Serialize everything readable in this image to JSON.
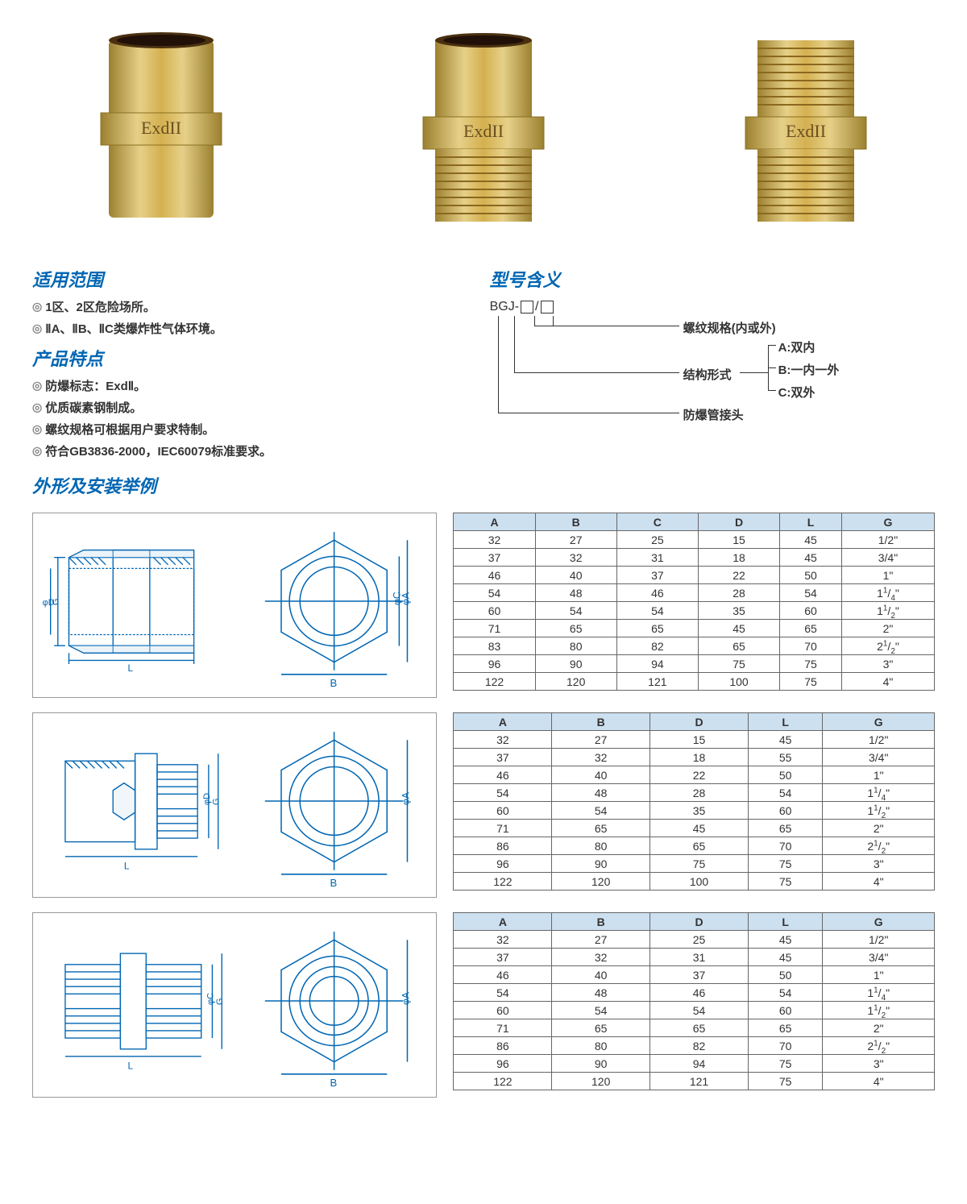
{
  "photos": {
    "label_text": "ExdII"
  },
  "scope": {
    "title": "适用范围",
    "items": [
      "1区、2区危险场所。",
      "ⅡA、ⅡB、ⅡC类爆炸性气体环境。"
    ]
  },
  "features": {
    "title": "产品特点",
    "items": [
      "防爆标志：ExdⅡ。",
      "优质碳素钢制成。",
      "螺纹规格可根据用户要求特制。",
      "符合GB3836-2000，IEC60079标准要求。"
    ]
  },
  "model": {
    "title": "型号含义",
    "code_prefix": "BGJ-",
    "lines": [
      {
        "label": "螺纹规格(内或外)"
      },
      {
        "label": "结构形式",
        "subs": [
          "A:双内",
          "B:一内一外",
          "C:双外"
        ]
      },
      {
        "label": "防爆管接头"
      }
    ]
  },
  "dims_title": "外形及安装举例",
  "table1": {
    "columns": [
      "A",
      "B",
      "C",
      "D",
      "L",
      "G"
    ],
    "rows": [
      [
        "32",
        "27",
        "25",
        "15",
        "45",
        "1/2\""
      ],
      [
        "37",
        "32",
        "31",
        "18",
        "45",
        "3/4\""
      ],
      [
        "46",
        "40",
        "37",
        "22",
        "50",
        "1\""
      ],
      [
        "54",
        "48",
        "46",
        "28",
        "54",
        "1¹/₄\""
      ],
      [
        "60",
        "54",
        "54",
        "35",
        "60",
        "1¹/₂\""
      ],
      [
        "71",
        "65",
        "65",
        "45",
        "65",
        "2\""
      ],
      [
        "83",
        "80",
        "82",
        "65",
        "70",
        "2¹/₂\""
      ],
      [
        "96",
        "90",
        "94",
        "75",
        "75",
        "3\""
      ],
      [
        "122",
        "120",
        "121",
        "100",
        "75",
        "4\""
      ]
    ]
  },
  "table2": {
    "columns": [
      "A",
      "B",
      "D",
      "L",
      "G"
    ],
    "rows": [
      [
        "32",
        "27",
        "15",
        "45",
        "1/2\""
      ],
      [
        "37",
        "32",
        "18",
        "55",
        "3/4\""
      ],
      [
        "46",
        "40",
        "22",
        "50",
        "1\""
      ],
      [
        "54",
        "48",
        "28",
        "54",
        "1¹/₄\""
      ],
      [
        "60",
        "54",
        "35",
        "60",
        "1¹/₂\""
      ],
      [
        "71",
        "65",
        "45",
        "65",
        "2\""
      ],
      [
        "86",
        "80",
        "65",
        "70",
        "2¹/₂\""
      ],
      [
        "96",
        "90",
        "75",
        "75",
        "3\""
      ],
      [
        "122",
        "120",
        "100",
        "75",
        "4\""
      ]
    ]
  },
  "table3": {
    "columns": [
      "A",
      "B",
      "D",
      "L",
      "G"
    ],
    "rows": [
      [
        "32",
        "27",
        "25",
        "45",
        "1/2\""
      ],
      [
        "37",
        "32",
        "31",
        "45",
        "3/4\""
      ],
      [
        "46",
        "40",
        "37",
        "50",
        "1\""
      ],
      [
        "54",
        "48",
        "46",
        "54",
        "1¹/₄\""
      ],
      [
        "60",
        "54",
        "54",
        "60",
        "1¹/₂\""
      ],
      [
        "71",
        "65",
        "65",
        "65",
        "2\""
      ],
      [
        "86",
        "80",
        "82",
        "70",
        "2¹/₂\""
      ],
      [
        "96",
        "90",
        "94",
        "75",
        "3\""
      ],
      [
        "122",
        "120",
        "121",
        "75",
        "4\""
      ]
    ]
  },
  "colors": {
    "heading": "#0066b3",
    "table_header_bg": "#cde0f0",
    "diagram_stroke": "#0066b3",
    "brass1": "#d4b050",
    "brass2": "#b89030",
    "brass3": "#e0c878"
  },
  "diagram_labels": {
    "L": "L",
    "B": "B",
    "G": "G",
    "phiA": "φA",
    "phiC": "φC",
    "phiD": "φD"
  }
}
